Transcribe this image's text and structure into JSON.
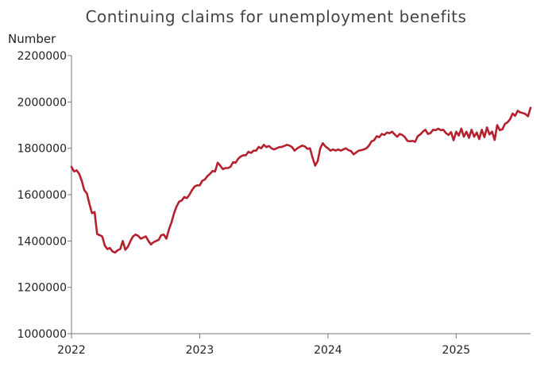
{
  "chart_data": {
    "type": "line",
    "title": "Continuing claims for unemployment benefits",
    "ylabel": "Number",
    "xlabel": "",
    "xlim": [
      2022.0,
      2025.58
    ],
    "ylim": [
      1000000,
      2200000
    ],
    "y_ticks": [
      1000000,
      1200000,
      1400000,
      1600000,
      1800000,
      2000000,
      2200000
    ],
    "y_tick_labels": [
      "1000000",
      "1200000",
      "1400000",
      "1600000",
      "1800000",
      "2000000",
      "2200000"
    ],
    "x_ticks": [
      2022,
      2023,
      2024,
      2025
    ],
    "x_tick_labels": [
      "2022",
      "2023",
      "2024",
      "2025"
    ],
    "grid": false,
    "legend": "none",
    "series": [
      {
        "color": "#b5202e",
        "x": [
          2022.0,
          2022.02,
          2022.04,
          2022.06,
          2022.08,
          2022.1,
          2022.12,
          2022.14,
          2022.16,
          2022.18,
          2022.2,
          2022.22,
          2022.24,
          2022.26,
          2022.28,
          2022.3,
          2022.32,
          2022.34,
          2022.36,
          2022.38,
          2022.4,
          2022.42,
          2022.44,
          2022.46,
          2022.48,
          2022.5,
          2022.52,
          2022.54,
          2022.56,
          2022.58,
          2022.6,
          2022.62,
          2022.64,
          2022.66,
          2022.68,
          2022.7,
          2022.72,
          2022.74,
          2022.76,
          2022.78,
          2022.8,
          2022.82,
          2022.84,
          2022.86,
          2022.88,
          2022.9,
          2022.92,
          2022.94,
          2022.96,
          2022.98,
          2023.0,
          2023.02,
          2023.04,
          2023.06,
          2023.08,
          2023.1,
          2023.12,
          2023.14,
          2023.16,
          2023.18,
          2023.2,
          2023.22,
          2023.24,
          2023.26,
          2023.28,
          2023.3,
          2023.32,
          2023.34,
          2023.36,
          2023.38,
          2023.4,
          2023.42,
          2023.44,
          2023.46,
          2023.48,
          2023.5,
          2023.52,
          2023.54,
          2023.56,
          2023.58,
          2023.6,
          2023.62,
          2023.64,
          2023.66,
          2023.68,
          2023.7,
          2023.72,
          2023.74,
          2023.76,
          2023.78,
          2023.8,
          2023.82,
          2023.84,
          2023.86,
          2023.88,
          2023.9,
          2023.92,
          2023.94,
          2023.96,
          2023.98,
          2024.0,
          2024.02,
          2024.04,
          2024.06,
          2024.08,
          2024.1,
          2024.12,
          2024.14,
          2024.16,
          2024.18,
          2024.2,
          2024.22,
          2024.24,
          2024.26,
          2024.28,
          2024.3,
          2024.32,
          2024.34,
          2024.36,
          2024.38,
          2024.4,
          2024.42,
          2024.44,
          2024.46,
          2024.48,
          2024.5,
          2024.52,
          2024.54,
          2024.56,
          2024.58,
          2024.6,
          2024.62,
          2024.64,
          2024.66,
          2024.68,
          2024.7,
          2024.72,
          2024.74,
          2024.76,
          2024.78,
          2024.8,
          2024.82,
          2024.84,
          2024.86,
          2024.88,
          2024.9,
          2024.92,
          2024.94,
          2024.96,
          2024.98,
          2025.0,
          2025.02,
          2025.04,
          2025.06,
          2025.08,
          2025.1,
          2025.12,
          2025.14,
          2025.16,
          2025.18,
          2025.2,
          2025.22,
          2025.24,
          2025.26,
          2025.28,
          2025.3,
          2025.32,
          2025.34,
          2025.36,
          2025.38,
          2025.4,
          2025.42,
          2025.44,
          2025.46,
          2025.48,
          2025.5,
          2025.52,
          2025.54,
          2025.56,
          2025.58
        ],
        "values": [
          1720000,
          1700000,
          1705000,
          1690000,
          1660000,
          1620000,
          1605000,
          1560000,
          1520000,
          1525000,
          1430000,
          1425000,
          1420000,
          1380000,
          1365000,
          1370000,
          1355000,
          1350000,
          1360000,
          1365000,
          1400000,
          1362000,
          1375000,
          1400000,
          1420000,
          1428000,
          1422000,
          1410000,
          1415000,
          1420000,
          1400000,
          1385000,
          1395000,
          1400000,
          1405000,
          1425000,
          1428000,
          1410000,
          1450000,
          1480000,
          1520000,
          1550000,
          1570000,
          1575000,
          1590000,
          1585000,
          1600000,
          1620000,
          1635000,
          1640000,
          1640000,
          1660000,
          1665000,
          1680000,
          1690000,
          1702000,
          1700000,
          1738000,
          1725000,
          1710000,
          1715000,
          1715000,
          1720000,
          1740000,
          1738000,
          1755000,
          1765000,
          1770000,
          1770000,
          1785000,
          1780000,
          1790000,
          1790000,
          1806000,
          1800000,
          1815000,
          1805000,
          1810000,
          1800000,
          1795000,
          1800000,
          1805000,
          1806000,
          1810000,
          1815000,
          1812000,
          1805000,
          1790000,
          1800000,
          1806000,
          1812000,
          1808000,
          1798000,
          1800000,
          1760000,
          1725000,
          1745000,
          1800000,
          1822000,
          1808000,
          1800000,
          1790000,
          1795000,
          1790000,
          1795000,
          1790000,
          1795000,
          1800000,
          1792000,
          1788000,
          1774000,
          1782000,
          1790000,
          1792000,
          1795000,
          1800000,
          1812000,
          1830000,
          1835000,
          1852000,
          1848000,
          1862000,
          1858000,
          1868000,
          1865000,
          1872000,
          1860000,
          1850000,
          1862000,
          1858000,
          1848000,
          1832000,
          1830000,
          1832000,
          1828000,
          1852000,
          1860000,
          1872000,
          1880000,
          1862000,
          1866000,
          1880000,
          1878000,
          1885000,
          1878000,
          1880000,
          1866000,
          1858000,
          1870000,
          1835000,
          1872000,
          1855000,
          1885000,
          1850000,
          1872000,
          1845000,
          1880000,
          1850000,
          1868000,
          1840000,
          1880000,
          1848000,
          1890000,
          1860000,
          1872000,
          1836000,
          1900000,
          1878000,
          1882000,
          1905000,
          1912000,
          1925000,
          1950000,
          1940000,
          1962000,
          1955000,
          1952000,
          1948000,
          1938000,
          1975000
        ]
      }
    ]
  }
}
